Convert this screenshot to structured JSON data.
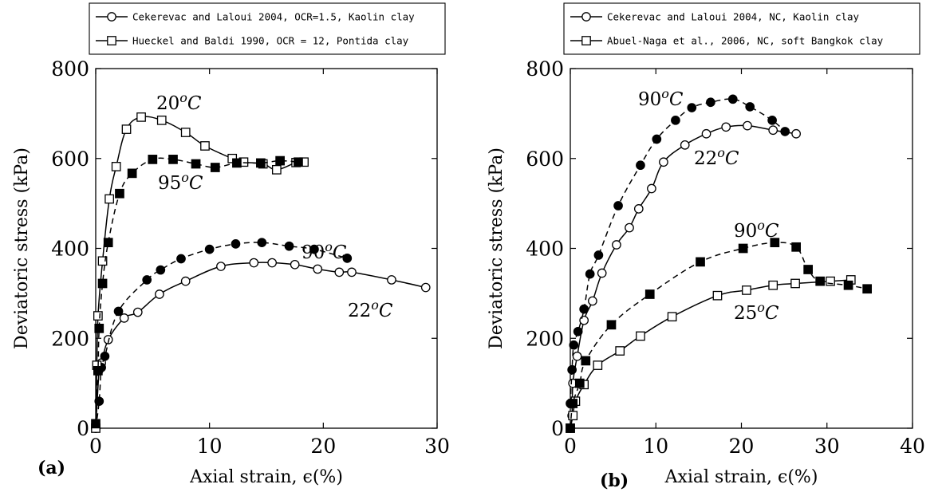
{
  "chart_data": [
    {
      "type": "line",
      "panel_label": "(a)",
      "xlabel": "Axial strain, ϵ(%)",
      "ylabel": "Deviatoric stress (kPa)",
      "xlim": [
        0,
        30
      ],
      "ylim": [
        0,
        800
      ],
      "xticks": [
        0,
        10,
        20,
        30
      ],
      "yticks": [
        0,
        200,
        400,
        600,
        800
      ],
      "grid": false,
      "legend_position": "top, outside plot",
      "legend": [
        {
          "label": "Cekerevac and Laloui 2004, OCR=1.5, Kaolin clay",
          "marker": "circle"
        },
        {
          "label": "Hueckel and Baldi 1990, OCR = 12, Pontida clay",
          "marker": "square"
        }
      ],
      "series": [
        {
          "group": 1,
          "temperature": "22°C",
          "marker": "open-circle",
          "line": "solid",
          "points": [
            [
              0.0,
              0
            ],
            [
              0.3,
              130
            ],
            [
              0.5,
              145
            ],
            [
              1.1,
              197
            ],
            [
              2.5,
              245
            ],
            [
              3.7,
              258
            ],
            [
              5.6,
              298
            ],
            [
              7.9,
              327
            ],
            [
              11.0,
              360
            ],
            [
              13.9,
              368
            ],
            [
              15.5,
              368
            ],
            [
              17.5,
              364
            ],
            [
              19.5,
              354
            ],
            [
              21.4,
              347
            ],
            [
              22.5,
              347
            ],
            [
              26.0,
              330
            ],
            [
              29.0,
              313
            ]
          ]
        },
        {
          "group": 1,
          "temperature": "90°C",
          "marker": "filled-circle",
          "line": "dashed",
          "points": [
            [
              0.0,
              0
            ],
            [
              0.3,
              60
            ],
            [
              0.5,
              135
            ],
            [
              0.8,
              160
            ],
            [
              2.0,
              260
            ],
            [
              4.5,
              330
            ],
            [
              5.7,
              352
            ],
            [
              7.5,
              377
            ],
            [
              10.0,
              398
            ],
            [
              12.3,
              410
            ],
            [
              14.6,
              413
            ],
            [
              17.0,
              405
            ],
            [
              19.2,
              398
            ],
            [
              22.1,
              378
            ]
          ]
        },
        {
          "group": 2,
          "temperature": "20°C",
          "marker": "open-square",
          "line": "solid",
          "points": [
            [
              0.0,
              0
            ],
            [
              0.1,
              140
            ],
            [
              0.2,
              250
            ],
            [
              0.6,
              372
            ],
            [
              1.2,
              510
            ],
            [
              1.8,
              582
            ],
            [
              2.7,
              665
            ],
            [
              4.0,
              692
            ],
            [
              5.8,
              685
            ],
            [
              7.9,
              658
            ],
            [
              9.6,
              628
            ],
            [
              12.0,
              600
            ],
            [
              13.0,
              592
            ],
            [
              14.7,
              588
            ],
            [
              15.9,
              575
            ],
            [
              17.6,
              591
            ],
            [
              18.3,
              592
            ]
          ]
        },
        {
          "group": 2,
          "temperature": "95°C",
          "marker": "filled-square",
          "line": "dashed",
          "points": [
            [
              0.0,
              10
            ],
            [
              0.2,
              128
            ],
            [
              0.3,
              222
            ],
            [
              0.6,
              322
            ],
            [
              1.1,
              413
            ],
            [
              2.1,
              522
            ],
            [
              3.2,
              567
            ],
            [
              5.0,
              598
            ],
            [
              6.8,
              598
            ],
            [
              8.8,
              588
            ],
            [
              10.5,
              580
            ],
            [
              12.4,
              590
            ],
            [
              14.5,
              590
            ],
            [
              16.2,
              595
            ],
            [
              17.8,
              592
            ]
          ]
        }
      ],
      "annotations": [
        "20^{o}C",
        "95^{o}C",
        "90^{o}C",
        "22^{o}C"
      ]
    },
    {
      "type": "line",
      "panel_label": "(b)",
      "xlabel": "Axial strain, ϵ(%)",
      "ylabel": "Deviatoric stress (kPa)",
      "xlim": [
        0,
        40
      ],
      "ylim": [
        0,
        800
      ],
      "xticks": [
        0,
        10,
        20,
        30,
        40
      ],
      "yticks": [
        0,
        200,
        400,
        600,
        800
      ],
      "grid": false,
      "legend_position": "top, outside plot",
      "legend": [
        {
          "label": "Cekerevac and Laloui 2004, NC, Kaolin clay",
          "marker": "circle"
        },
        {
          "label": "Abuel-Naga et al., 2006, NC, soft Bangkok clay",
          "marker": "square"
        }
      ],
      "series": [
        {
          "group": 1,
          "temperature": "22°C",
          "marker": "open-circle",
          "line": "solid",
          "points": [
            [
              0.0,
              0
            ],
            [
              0.2,
              28
            ],
            [
              0.3,
              100
            ],
            [
              0.8,
              160
            ],
            [
              1.6,
              240
            ],
            [
              2.6,
              283
            ],
            [
              3.7,
              345
            ],
            [
              5.4,
              408
            ],
            [
              6.9,
              446
            ],
            [
              8.0,
              488
            ],
            [
              9.5,
              533
            ],
            [
              10.9,
              592
            ],
            [
              13.4,
              630
            ],
            [
              15.9,
              655
            ],
            [
              18.2,
              670
            ],
            [
              20.7,
              673
            ],
            [
              23.7,
              663
            ],
            [
              26.4,
              655
            ]
          ]
        },
        {
          "group": 1,
          "temperature": "90°C",
          "marker": "filled-circle",
          "line": "dashed",
          "points": [
            [
              0.0,
              55
            ],
            [
              0.2,
              130
            ],
            [
              0.4,
              185
            ],
            [
              0.9,
              215
            ],
            [
              1.6,
              265
            ],
            [
              2.3,
              343
            ],
            [
              3.3,
              385
            ],
            [
              5.6,
              495
            ],
            [
              8.2,
              585
            ],
            [
              10.1,
              643
            ],
            [
              12.3,
              685
            ],
            [
              14.2,
              713
            ],
            [
              16.4,
              725
            ],
            [
              19.0,
              732
            ],
            [
              21.0,
              715
            ],
            [
              23.6,
              685
            ],
            [
              25.1,
              660
            ]
          ]
        },
        {
          "group": 2,
          "temperature": "25°C",
          "marker": "open-square",
          "line": "solid",
          "points": [
            [
              0.0,
              0
            ],
            [
              0.3,
              28
            ],
            [
              0.6,
              60
            ],
            [
              1.6,
              97
            ],
            [
              3.2,
              140
            ],
            [
              5.8,
              172
            ],
            [
              8.2,
              205
            ],
            [
              11.9,
              248
            ],
            [
              17.2,
              295
            ],
            [
              20.6,
              307
            ],
            [
              23.7,
              318
            ],
            [
              26.3,
              322
            ],
            [
              30.4,
              327
            ],
            [
              32.8,
              330
            ]
          ]
        },
        {
          "group": 2,
          "temperature": "90°C",
          "marker": "filled-square",
          "line": "dashed",
          "points": [
            [
              0.0,
              0
            ],
            [
              0.3,
              55
            ],
            [
              1.1,
              100
            ],
            [
              1.8,
              150
            ],
            [
              4.8,
              230
            ],
            [
              9.3,
              298
            ],
            [
              15.2,
              370
            ],
            [
              20.2,
              400
            ],
            [
              23.9,
              413
            ],
            [
              26.4,
              403
            ],
            [
              27.8,
              353
            ],
            [
              29.2,
              327
            ],
            [
              32.5,
              318
            ],
            [
              34.7,
              310
            ]
          ]
        }
      ],
      "annotations": [
        "90^{o}C",
        "22^{o}C",
        "90^{o}C",
        "25^{o}C"
      ]
    }
  ]
}
